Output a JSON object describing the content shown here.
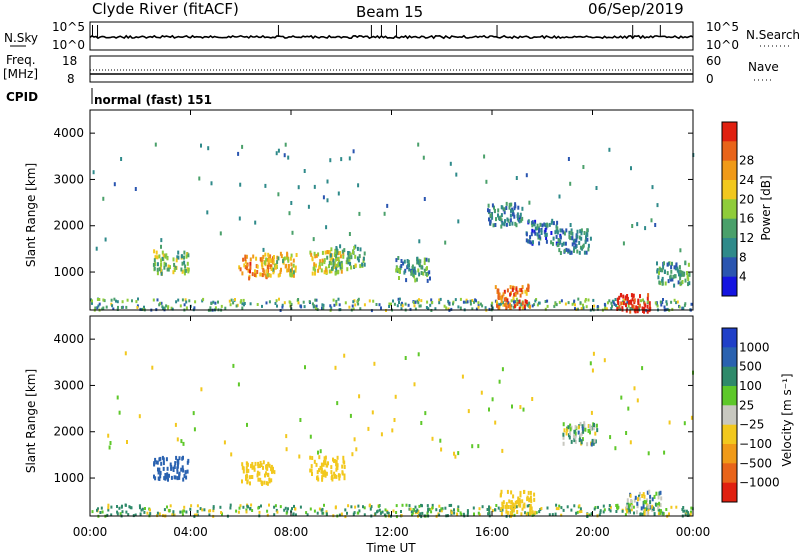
{
  "header": {
    "station": "Clyde River (fitACF)",
    "beam": "Beam 15",
    "date": "06/Sep/2019"
  },
  "noise_panel": {
    "left_label": "N.Sky",
    "left_ticks": [
      "10^5",
      "10^0"
    ],
    "right_ticks": [
      "10^5",
      "10^0"
    ],
    "right_label": "N.Search"
  },
  "freq_panel": {
    "left_label_1": "Freq.",
    "left_label_2": "[MHz]",
    "left_ticks": [
      "18",
      "8"
    ],
    "right_ticks": [
      "60",
      "0"
    ],
    "right_label": "Nave"
  },
  "cpid": {
    "label": "CPID",
    "value": "normal (fast) 151"
  },
  "x_axis": {
    "label": "Time UT",
    "ticks": [
      "00:00",
      "04:00",
      "08:00",
      "12:00",
      "16:00",
      "20:00",
      "00:00"
    ]
  },
  "chart_data": [
    {
      "type": "heatmap",
      "title": "",
      "quantity": "Power",
      "xlabel": "Time UT",
      "ylabel": "Slant Range [km]",
      "y_ticks": [
        1000,
        2000,
        3000,
        4000
      ],
      "ylim": [
        180,
        4500
      ],
      "xlim_hours": [
        0,
        24
      ],
      "colorbar": {
        "label": "Power [dB]",
        "ticks": [
          4,
          8,
          12,
          16,
          20,
          24,
          28
        ],
        "range": [
          0,
          30
        ],
        "colors": [
          "#1414e0",
          "#2a55b0",
          "#2f8a8a",
          "#4aa06a",
          "#8fcc3a",
          "#f2c81e",
          "#f09a18",
          "#e8641a",
          "#e02010"
        ]
      },
      "features": [
        {
          "t": 3.2,
          "r": 1250,
          "v": 14
        },
        {
          "t": 6.6,
          "r": 1150,
          "v": 22
        },
        {
          "t": 7.5,
          "r": 1200,
          "v": 18
        },
        {
          "t": 9.4,
          "r": 1250,
          "v": 18
        },
        {
          "t": 10.2,
          "r": 1350,
          "v": 12
        },
        {
          "t": 12.8,
          "r": 1100,
          "v": 10
        },
        {
          "t": 16.8,
          "r": 500,
          "v": 24
        },
        {
          "t": 21.6,
          "r": 300,
          "v": 30
        },
        {
          "t": 16.5,
          "r": 2300,
          "v": 8
        },
        {
          "t": 18.0,
          "r": 1900,
          "v": 7
        },
        {
          "t": 19.2,
          "r": 1700,
          "v": 8
        },
        {
          "t": 23.2,
          "r": 1000,
          "v": 10
        }
      ]
    },
    {
      "type": "heatmap",
      "title": "",
      "quantity": "Velocity",
      "xlabel": "Time UT",
      "ylabel": "Slant Range [km]",
      "y_ticks": [
        1000,
        2000,
        3000,
        4000
      ],
      "ylim": [
        180,
        4500
      ],
      "xlim_hours": [
        0,
        24
      ],
      "colorbar": {
        "label": "Velocity [m s⁻¹]",
        "ticks": [
          "1000",
          "500",
          "100",
          "25",
          "−25",
          "−100",
          "−500",
          "−1000"
        ],
        "colors": [
          "#2040c8",
          "#2a62b0",
          "#2f8a6a",
          "#5ec82a",
          "#c8c8c0",
          "#f2c81e",
          "#f09a18",
          "#e8641a",
          "#e02010"
        ]
      },
      "features": [
        {
          "t": 3.2,
          "r": 1250,
          "v": 300
        },
        {
          "t": 6.6,
          "r": 1150,
          "v": -300
        },
        {
          "t": 9.4,
          "r": 1250,
          "v": -300
        },
        {
          "t": 17.0,
          "r": 500,
          "v": -300
        },
        {
          "t": 19.5,
          "r": 2000,
          "v": 0
        },
        {
          "t": 22.0,
          "r": 500,
          "v": 0
        }
      ]
    }
  ]
}
